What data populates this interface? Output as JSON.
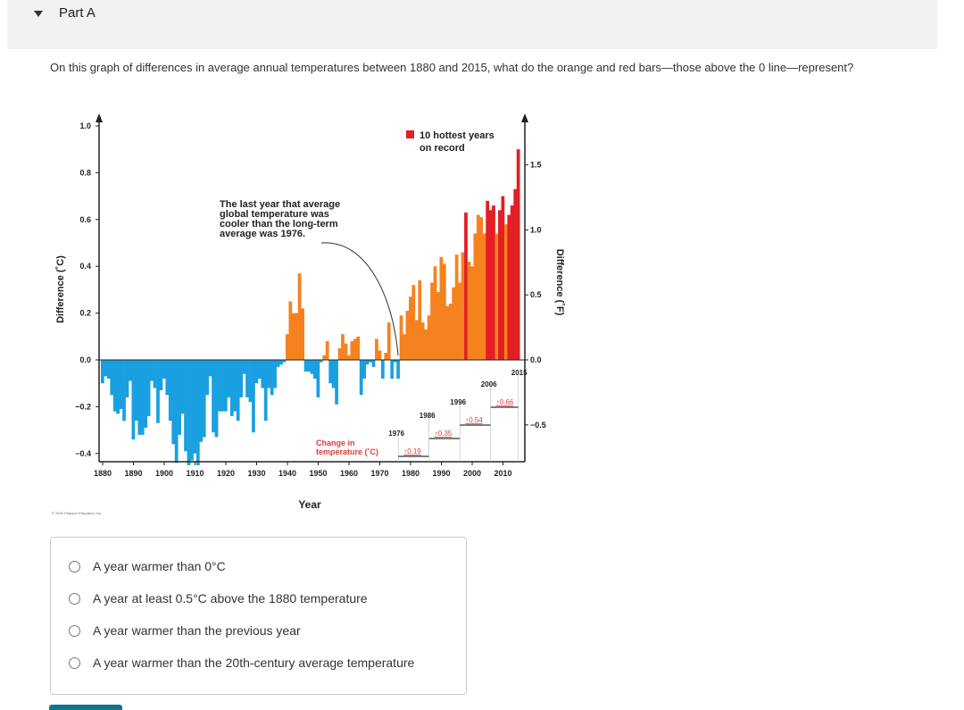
{
  "header": {
    "part_label": "Part A",
    "collapse_icon": "triangle-down-icon"
  },
  "question": "On this graph of differences in average annual temperatures between 1880 and 2015, what do the orange and red bars—those above the 0 line—represent?",
  "copyright": "© 2020 Pearson Education, Inc",
  "options": [
    "A year warmer than 0°C",
    "A year at least 0.5°C above the 1880 temperature",
    "A year warmer than the previous year",
    "A year warmer than the 20th-century average temperature"
  ],
  "chart_data": {
    "type": "bar",
    "xlabel": "Year",
    "ylabel": "Difference (˚C)",
    "ylabel_right": "Difference (˚F)",
    "ylim": [
      -0.45,
      1.05
    ],
    "x_ticks": [
      "1880",
      "1890",
      "1900",
      "1910",
      "1920",
      "1930",
      "1940",
      "1950",
      "1960",
      "1970",
      "1980",
      "1990",
      "2000",
      "2010"
    ],
    "y_ticks": [
      "1.0",
      "0.8",
      "0.6",
      "0.4",
      "0.2",
      "0.0",
      "−0.2",
      "−0.4"
    ],
    "y_ticks_right": [
      "1.5",
      "1.0",
      "0.5",
      "0.0",
      "−0.5"
    ],
    "x_start": 1880,
    "values": [
      -0.1,
      -0.07,
      -0.08,
      -0.15,
      -0.22,
      -0.23,
      -0.21,
      -0.26,
      -0.16,
      -0.09,
      -0.34,
      -0.26,
      -0.32,
      -0.32,
      -0.29,
      -0.24,
      -0.09,
      -0.12,
      -0.27,
      -0.13,
      -0.08,
      -0.15,
      -0.26,
      -0.36,
      -0.44,
      -0.32,
      -0.23,
      -0.39,
      -0.45,
      -0.43,
      -0.4,
      -0.45,
      -0.35,
      -0.33,
      -0.15,
      -0.07,
      -0.31,
      -0.33,
      -0.22,
      -0.22,
      -0.22,
      -0.16,
      -0.24,
      -0.22,
      -0.26,
      -0.16,
      -0.06,
      -0.16,
      -0.18,
      -0.31,
      -0.1,
      -0.08,
      -0.12,
      -0.26,
      -0.12,
      -0.15,
      -0.12,
      -0.03,
      -0.02,
      -0.01,
      0.11,
      0.25,
      0.2,
      0.2,
      0.37,
      0.22,
      -0.05,
      -0.05,
      -0.06,
      -0.08,
      -0.16,
      -0.01,
      0.02,
      0.08,
      -0.1,
      -0.12,
      -0.19,
      0.05,
      0.11,
      0.07,
      0.02,
      0.08,
      0.09,
      0.1,
      -0.15,
      -0.08,
      -0.02,
      -0.01,
      -0.03,
      0.09,
      0.04,
      -0.08,
      0.03,
      0.16,
      -0.08,
      -0.01,
      -0.08,
      0.19,
      0.11,
      0.21,
      0.27,
      0.32,
      0.17,
      0.34,
      0.16,
      0.13,
      0.19,
      0.33,
      0.4,
      0.29,
      0.44,
      0.41,
      0.23,
      0.24,
      0.31,
      0.45,
      0.33,
      0.46,
      0.63,
      0.42,
      0.4,
      0.54,
      0.62,
      0.61,
      0.54,
      0.68,
      0.64,
      0.66,
      0.54,
      0.64,
      0.7,
      0.58,
      0.62,
      0.66,
      0.73,
      0.9
    ],
    "hottest_years": [
      1998,
      2005,
      2006,
      2007,
      2009,
      2010,
      2012,
      2013,
      2014,
      2015
    ],
    "colors": {
      "below": "#1aa0e0",
      "above": "#f5821f",
      "hottest": "#e31e24"
    },
    "legend": "10 hottest years on record",
    "annotation": "The last year that average global temperature was cooler than the long-term average was 1976.",
    "change_label": "Change in temperature (˚C)",
    "changes": [
      {
        "year": "1976",
        "value": "0.19"
      },
      {
        "year": "1986",
        "value": "0.35"
      },
      {
        "year": "1996",
        "value": "0.54"
      },
      {
        "year": "2006",
        "value": "0.66"
      }
    ],
    "end_year": "2015"
  }
}
